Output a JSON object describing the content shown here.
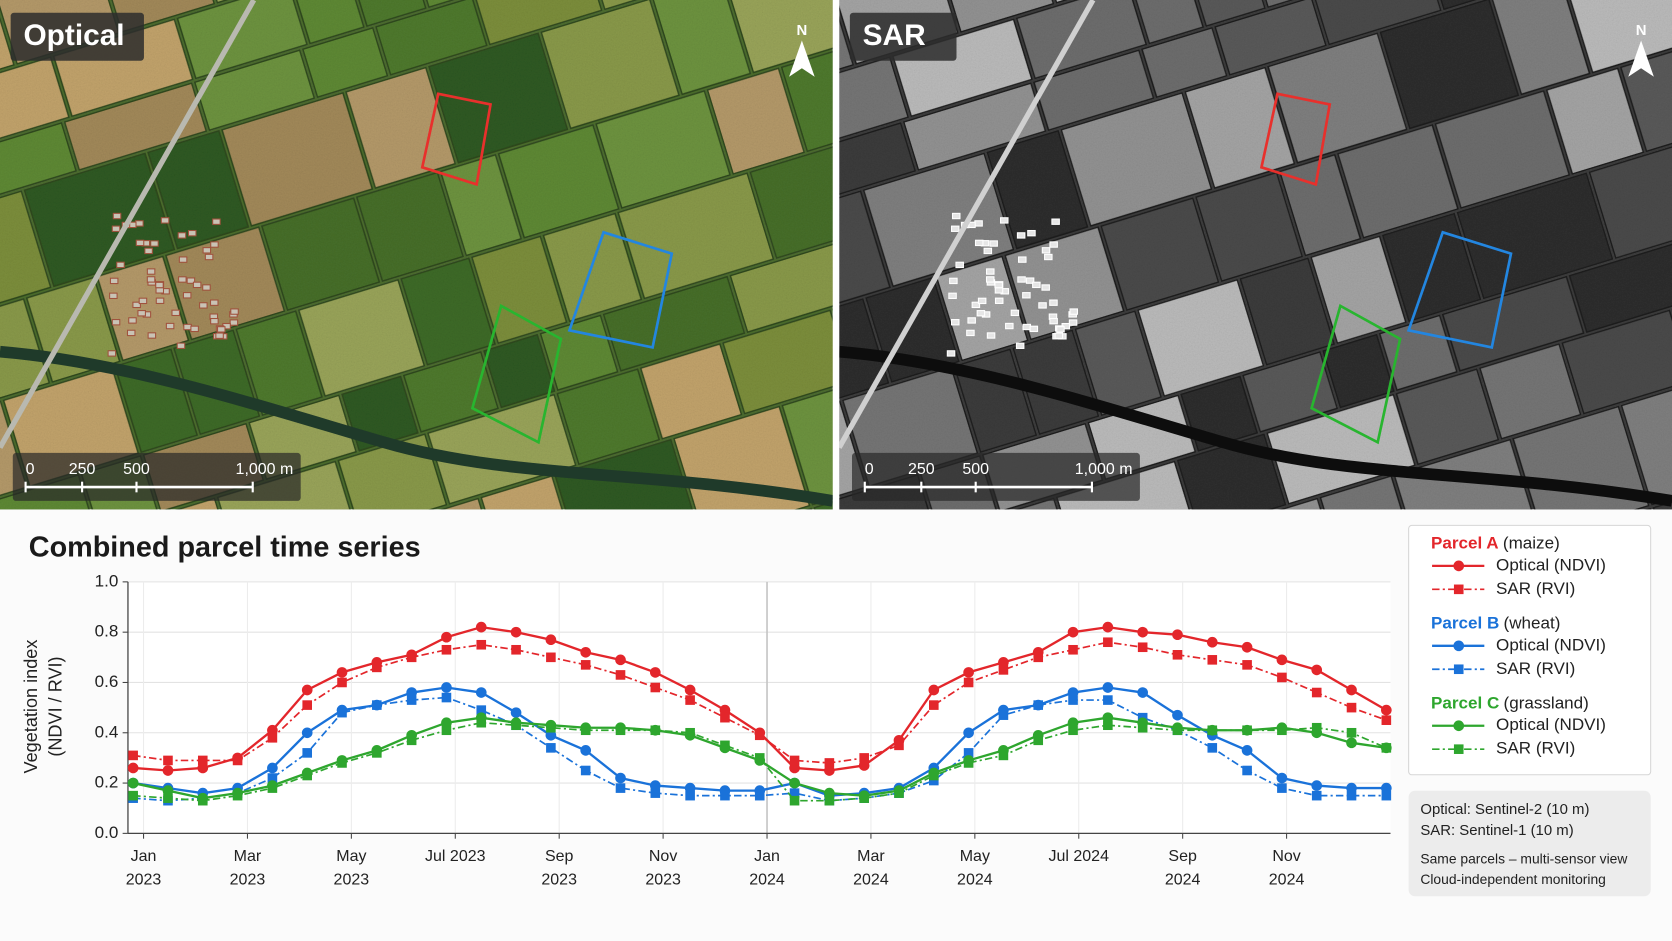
{
  "panels": [
    {
      "label": "Optical",
      "scale_labels": [
        "0",
        "250",
        "500",
        "1,000 m"
      ]
    },
    {
      "label": "SAR",
      "scale_labels": [
        "0",
        "250",
        "500",
        "1,000 m"
      ]
    }
  ],
  "north": "N",
  "notes": [
    "Optical: Sentinel-2 (10 m)",
    "SAR: Sentinel-1 (10 m)",
    "Same parcels – multi-sensor view",
    "Cloud-independent monitoring"
  ],
  "chart_data": {
    "type": "line",
    "title": "Combined parcel time series",
    "ylabel": "Vegetation index",
    "ylabel_note": "(NDVI / RVI)",
    "x": [
      -0.2,
      0.47,
      1.14,
      1.81,
      2.48,
      3.15,
      3.82,
      4.49,
      5.16,
      5.83,
      6.5,
      7.17,
      7.84,
      8.51,
      9.18,
      9.85,
      10.52,
      11.19,
      11.86,
      12.53,
      13.2,
      13.87,
      14.54,
      15.21,
      15.88,
      16.55,
      17.22,
      17.89,
      18.56,
      19.23,
      19.9,
      20.57,
      21.24,
      21.91,
      22.58,
      23.25,
      23.92
    ],
    "xlim": [
      -0.3,
      24.0
    ],
    "xticks": [
      {
        "value": 0,
        "label": "Jan 2023"
      },
      {
        "value": 2,
        "label": "Mar 2023"
      },
      {
        "value": 4,
        "label": "May 2023"
      },
      {
        "value": 6,
        "label": "Jul 2023"
      },
      {
        "value": 8,
        "label": "Sep 2023"
      },
      {
        "value": 10,
        "label": "Nov 2023"
      },
      {
        "value": 12,
        "label": "Jan 2024"
      },
      {
        "value": 14,
        "label": "Mar 2024"
      },
      {
        "value": 16,
        "label": "May 2024"
      },
      {
        "value": 18,
        "label": "Jul 2024"
      },
      {
        "value": 20,
        "label": "Sep 2024"
      },
      {
        "value": 22,
        "label": "Nov 2024"
      }
    ],
    "ylim": [
      0,
      1
    ],
    "yticks": [
      {
        "value": 0,
        "label": "0.0"
      },
      {
        "value": 0.2,
        "label": "0.2"
      },
      {
        "value": 0.4,
        "label": "0.4"
      },
      {
        "value": 0.6,
        "label": "0.6"
      },
      {
        "value": 0.8,
        "label": "0.8"
      },
      {
        "value": 1,
        "label": "1.0"
      }
    ],
    "grid": true,
    "series": [
      {
        "name": "Optical (NDVI)",
        "parcel": "Parcel A",
        "parcel_note": "(maize)",
        "color": "#e3262b",
        "dashed": false,
        "marker": "circle",
        "values": [
          0.26,
          0.25,
          0.26,
          0.3,
          0.41,
          0.57,
          0.64,
          0.68,
          0.71,
          0.78,
          0.82,
          0.8,
          0.77,
          0.72,
          0.69,
          0.64,
          0.57,
          0.49,
          0.4,
          0.26,
          0.25,
          0.27,
          0.37,
          0.57,
          0.64,
          0.68,
          0.72,
          0.8,
          0.82,
          0.8,
          0.79,
          0.76,
          0.74,
          0.69,
          0.65,
          0.57,
          0.49
        ]
      },
      {
        "name": "SAR (RVI)",
        "parcel": "Parcel A",
        "parcel_note": "(maize)",
        "color": "#e3262b",
        "dashed": true,
        "marker": "square",
        "values": [
          0.31,
          0.29,
          0.29,
          0.29,
          0.38,
          0.51,
          0.6,
          0.66,
          0.7,
          0.73,
          0.75,
          0.73,
          0.7,
          0.67,
          0.63,
          0.58,
          0.53,
          0.46,
          0.39,
          0.29,
          0.28,
          0.3,
          0.35,
          0.51,
          0.6,
          0.65,
          0.7,
          0.73,
          0.76,
          0.74,
          0.71,
          0.69,
          0.67,
          0.62,
          0.56,
          0.5,
          0.45
        ]
      },
      {
        "name": "Optical (NDVI)",
        "parcel": "Parcel B",
        "parcel_note": "(wheat)",
        "color": "#1a72d9",
        "dashed": false,
        "marker": "circle",
        "values": [
          0.2,
          0.18,
          0.16,
          0.18,
          0.26,
          0.4,
          0.49,
          0.51,
          0.56,
          0.58,
          0.56,
          0.48,
          0.39,
          0.33,
          0.22,
          0.19,
          0.18,
          0.17,
          0.17,
          0.2,
          0.15,
          0.16,
          0.18,
          0.26,
          0.4,
          0.49,
          0.51,
          0.56,
          0.58,
          0.56,
          0.47,
          0.39,
          0.33,
          0.22,
          0.19,
          0.18,
          0.18
        ]
      },
      {
        "name": "SAR (RVI)",
        "parcel": "Parcel B",
        "parcel_note": "(wheat)",
        "color": "#1a72d9",
        "dashed": true,
        "marker": "square",
        "values": [
          0.14,
          0.13,
          0.14,
          0.16,
          0.22,
          0.32,
          0.48,
          0.51,
          0.53,
          0.54,
          0.49,
          0.43,
          0.34,
          0.25,
          0.18,
          0.16,
          0.15,
          0.15,
          0.15,
          0.16,
          0.13,
          0.14,
          0.16,
          0.21,
          0.32,
          0.47,
          0.51,
          0.53,
          0.53,
          0.46,
          0.41,
          0.34,
          0.25,
          0.18,
          0.15,
          0.15,
          0.15
        ]
      },
      {
        "name": "Optical (NDVI)",
        "parcel": "Parcel C",
        "parcel_note": "(grassland)",
        "color": "#2ea62e",
        "dashed": false,
        "marker": "circle",
        "values": [
          0.2,
          0.17,
          0.14,
          0.16,
          0.19,
          0.24,
          0.29,
          0.33,
          0.39,
          0.44,
          0.46,
          0.44,
          0.43,
          0.42,
          0.42,
          0.41,
          0.39,
          0.34,
          0.29,
          0.2,
          0.16,
          0.15,
          0.17,
          0.24,
          0.29,
          0.33,
          0.39,
          0.44,
          0.46,
          0.44,
          0.42,
          0.41,
          0.41,
          0.42,
          0.4,
          0.36,
          0.34
        ]
      },
      {
        "name": "SAR (RVI)",
        "parcel": "Parcel C",
        "parcel_note": "(grassland)",
        "color": "#2ea62e",
        "dashed": true,
        "marker": "square",
        "values": [
          0.15,
          0.14,
          0.13,
          0.15,
          0.18,
          0.23,
          0.28,
          0.32,
          0.37,
          0.41,
          0.44,
          0.43,
          0.42,
          0.41,
          0.41,
          0.41,
          0.4,
          0.35,
          0.3,
          0.13,
          0.13,
          0.14,
          0.16,
          0.23,
          0.28,
          0.31,
          0.37,
          0.41,
          0.43,
          0.42,
          0.41,
          0.41,
          0.41,
          0.41,
          0.42,
          0.4,
          0.34
        ]
      }
    ]
  }
}
